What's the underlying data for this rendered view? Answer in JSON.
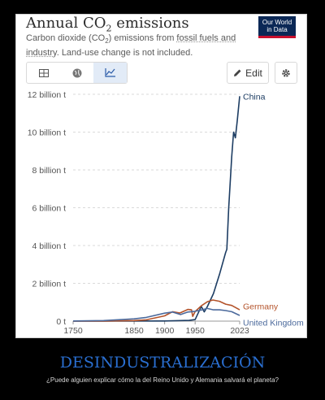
{
  "header": {
    "title_prefix": "Annual CO",
    "title_sub": "2",
    "title_suffix": " emissions",
    "sub_1": "Carbon dioxide (CO",
    "sub_2": "2",
    "sub_3": ") emissions from ",
    "sub_link": "fossil fuels and industry",
    "sub_4": ". Land-use change is not included.",
    "logo_line1": "Our World",
    "logo_line2": "in Data"
  },
  "toolbar": {
    "tabs": [
      "table-icon",
      "globe-icon",
      "line-chart-icon"
    ],
    "active_tab": 2,
    "edit_label": "Edit"
  },
  "colors": {
    "china": "#1d3d63",
    "germany": "#b4532a",
    "uk": "#4c6a9c",
    "accent_caption": "#2a6fd1"
  },
  "chart_data": {
    "type": "line",
    "title": "Annual CO2 emissions",
    "subtitle": "Carbon dioxide (CO2) emissions from fossil fuels and industry. Land-use change is not included.",
    "xlim": [
      1750,
      2023
    ],
    "ylim": [
      0,
      12
    ],
    "x_ticks": [
      "1750",
      "1850",
      "1900",
      "1950",
      "2023"
    ],
    "y_ticks": [
      "0 t",
      "2 billion t",
      "4 billion t",
      "6 billion t",
      "8 billion t",
      "10 billion t",
      "12 billion t"
    ],
    "series": [
      {
        "name": "China",
        "x": [
          1750,
          1900,
          1940,
          1950,
          1960,
          1965,
          1970,
          1980,
          1990,
          2000,
          2002,
          2005,
          2010,
          2013,
          2016,
          2019,
          2023
        ],
        "values": [
          0,
          0.01,
          0.04,
          0.08,
          0.78,
          0.49,
          0.77,
          1.46,
          2.48,
          3.63,
          3.8,
          6.0,
          8.7,
          10.0,
          9.7,
          10.6,
          11.9
        ]
      },
      {
        "name": "Germany",
        "x": [
          1750,
          1800,
          1850,
          1870,
          1900,
          1913,
          1925,
          1938,
          1944,
          1946,
          1950,
          1960,
          1970,
          1979,
          1990,
          2000,
          2010,
          2023
        ],
        "values": [
          0,
          0.005,
          0.03,
          0.07,
          0.28,
          0.5,
          0.43,
          0.62,
          0.6,
          0.25,
          0.51,
          0.81,
          1.03,
          1.12,
          1.05,
          0.9,
          0.83,
          0.6
        ]
      },
      {
        "name": "United Kingdom",
        "x": [
          1750,
          1800,
          1850,
          1870,
          1900,
          1913,
          1926,
          1938,
          1950,
          1960,
          1970,
          1980,
          1990,
          2000,
          2010,
          2023
        ],
        "values": [
          0.01,
          0.03,
          0.12,
          0.2,
          0.42,
          0.48,
          0.35,
          0.48,
          0.52,
          0.59,
          0.67,
          0.6,
          0.6,
          0.56,
          0.5,
          0.3
        ]
      }
    ]
  },
  "caption": {
    "title": "DESINDUSTRALIZACIÓN",
    "text": "¿Puede alguien explicar cómo la del Reino Unido y Alemania salvará el planeta?"
  }
}
